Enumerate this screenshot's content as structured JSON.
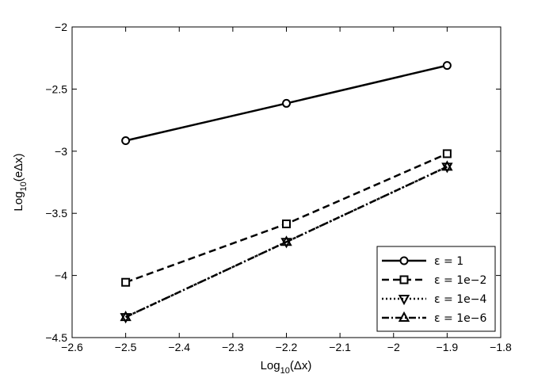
{
  "chart_data": {
    "type": "line",
    "title": "",
    "xlabel": {
      "base": "Log",
      "sub": "10",
      "rest": "(Δx)"
    },
    "ylabel": {
      "base": "Log",
      "sub": "10",
      "rest": "(eΔx)"
    },
    "xlim": [
      -2.6,
      -1.8
    ],
    "ylim": [
      -4.5,
      -2
    ],
    "x_ticks": [
      -2.6,
      -2.5,
      -2.4,
      -2.3,
      -2.2,
      -2.1,
      -2,
      -1.9,
      -1.8
    ],
    "x_tick_labels": [
      "−2.6",
      "−2.5",
      "−2.4",
      "−2.3",
      "−2.2",
      "−2.1",
      "−2",
      "−1.9",
      "−1.8"
    ],
    "y_ticks": [
      -4.5,
      -4,
      -3.5,
      -3,
      -2.5,
      -2
    ],
    "y_tick_labels": [
      "−4.5",
      "−4",
      "−3.5",
      "−3",
      "−2.5",
      "−2"
    ],
    "grid": false,
    "legend_position": "bottom-right",
    "x": [
      -2.5,
      -2.2,
      -1.9
    ],
    "series": [
      {
        "name": "ε = 1",
        "values": [
          -2.915,
          -2.615,
          -2.31
        ],
        "marker": "circle",
        "dash": "solid",
        "color": "#000000"
      },
      {
        "name": "ε = 1e−2",
        "values": [
          -4.055,
          -3.585,
          -3.02
        ],
        "marker": "square",
        "dash": "dashed",
        "color": "#000000"
      },
      {
        "name": "ε = 1e−4",
        "values": [
          -4.335,
          -3.73,
          -3.125
        ],
        "marker": "triangle-down",
        "dash": "dotted",
        "color": "#000000"
      },
      {
        "name": "ε = 1e−6",
        "values": [
          -4.335,
          -3.73,
          -3.125
        ],
        "marker": "triangle-up",
        "dash": "dashdot",
        "color": "#000000"
      }
    ]
  }
}
